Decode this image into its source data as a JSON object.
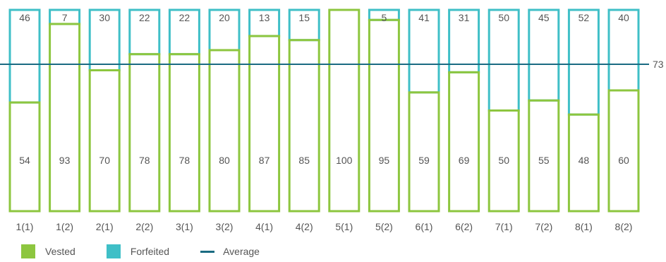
{
  "chart_data": {
    "type": "bar",
    "stacked": true,
    "categories": [
      "1(1)",
      "1(2)",
      "2(1)",
      "2(2)",
      "3(1)",
      "3(2)",
      "4(1)",
      "4(2)",
      "5(1)",
      "5(2)",
      "6(1)",
      "6(2)",
      "7(1)",
      "7(2)",
      "8(1)",
      "8(2)"
    ],
    "series": [
      {
        "name": "Vested",
        "color": "#8dc63f",
        "values": [
          54,
          93,
          70,
          78,
          78,
          80,
          87,
          85,
          100,
          95,
          59,
          69,
          50,
          55,
          48,
          60
        ]
      },
      {
        "name": "Forfeited",
        "color": "#3fbfc7",
        "values": [
          46,
          7,
          30,
          22,
          22,
          20,
          13,
          15,
          0,
          5,
          41,
          31,
          50,
          45,
          52,
          40
        ]
      }
    ],
    "average": {
      "name": "Average",
      "value": 73,
      "label": "73",
      "color": "#1a6b82"
    },
    "ylim": [
      0,
      100
    ],
    "grid": false,
    "legend_position": "bottom-left",
    "title": "",
    "xlabel": "",
    "ylabel": ""
  }
}
